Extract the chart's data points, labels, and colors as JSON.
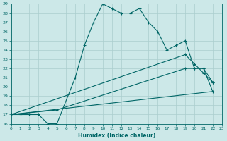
{
  "xlabel": "Humidex (Indice chaleur)",
  "bg_color": "#cce8e8",
  "line_color": "#006666",
  "grid_color": "#aacece",
  "series": {
    "line1": {
      "x": [
        0,
        1,
        2,
        3,
        4,
        5,
        7,
        8,
        9,
        10,
        11,
        12,
        13,
        14,
        15,
        16,
        17,
        18,
        19,
        20,
        21,
        22
      ],
      "y": [
        17,
        17,
        17,
        17,
        16,
        16,
        21,
        24.5,
        27,
        29,
        28.5,
        28,
        28,
        28.5,
        27,
        26,
        24,
        24.5,
        25,
        22,
        22,
        19.5
      ]
    },
    "line2": {
      "x": [
        0,
        5,
        19,
        20,
        21,
        22
      ],
      "y": [
        17,
        17.5,
        22,
        22,
        22,
        20.5
      ]
    },
    "line3": {
      "x": [
        0,
        22
      ],
      "y": [
        17,
        19.5
      ]
    },
    "line4": {
      "x": [
        0,
        19,
        20,
        21,
        22
      ],
      "y": [
        17,
        23.5,
        22.5,
        21.5,
        20.5
      ]
    }
  },
  "xlim": [
    0,
    23
  ],
  "ylim": [
    16,
    29
  ],
  "xticks": [
    0,
    1,
    2,
    3,
    4,
    5,
    6,
    7,
    8,
    9,
    10,
    11,
    12,
    13,
    14,
    15,
    16,
    17,
    18,
    19,
    20,
    21,
    22,
    23
  ],
  "yticks": [
    16,
    17,
    18,
    19,
    20,
    21,
    22,
    23,
    24,
    25,
    26,
    27,
    28,
    29
  ]
}
